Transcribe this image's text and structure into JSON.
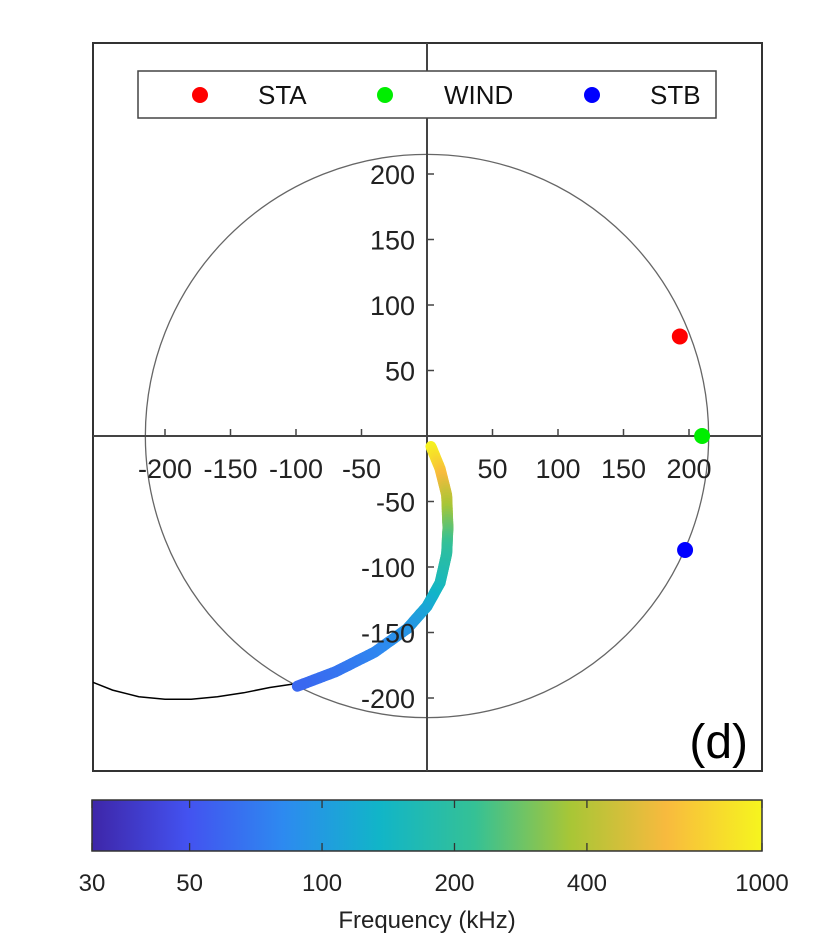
{
  "chart_data": {
    "type": "scatter",
    "panel_label": "(d)",
    "xlim": [
      -255,
      255
    ],
    "ylim": [
      -255,
      300
    ],
    "x_ticks": [
      -200,
      -150,
      -100,
      -50,
      50,
      100,
      150,
      200
    ],
    "y_ticks": [
      200,
      150,
      100,
      50,
      -50,
      -100,
      -150,
      -200
    ],
    "reference_circle_radius": 215,
    "legend": {
      "placement": "top",
      "entries": [
        {
          "name": "STA",
          "color": "#ff0000"
        },
        {
          "name": "WIND",
          "color": "#00ee00"
        },
        {
          "name": "STB",
          "color": "#0000ff"
        }
      ]
    },
    "spacecraft": [
      {
        "name": "STA",
        "x": 193,
        "y": 76,
        "color": "#ff0000"
      },
      {
        "name": "WIND",
        "x": 210,
        "y": 0,
        "color": "#00ee00"
      },
      {
        "name": "STB",
        "x": 197,
        "y": -87,
        "color": "#0000ff"
      }
    ],
    "spiral_line": {
      "x": [
        -255,
        -240,
        -220,
        -200,
        -180,
        -160,
        -140,
        -120,
        -100
      ],
      "y": [
        -188,
        -194,
        -199,
        -201,
        -201,
        -199,
        -196,
        -192,
        -189
      ]
    },
    "source_track": {
      "x": [
        3,
        10,
        15,
        16,
        15,
        10,
        0,
        -15,
        -40,
        -70,
        -99
      ],
      "y": [
        -8,
        -25,
        -45,
        -70,
        -90,
        -112,
        -130,
        -147,
        -165,
        -180,
        -191
      ],
      "frequency_khz": [
        1000,
        700,
        450,
        280,
        200,
        160,
        120,
        95,
        80,
        68,
        60
      ]
    },
    "colorbar": {
      "label": "Frequency (kHz)",
      "scale": "log",
      "range": [
        30,
        1000
      ],
      "ticks": [
        30,
        50,
        100,
        200,
        400,
        1000
      ],
      "tick_labels": [
        "30",
        "50",
        "100",
        "200",
        "400",
        "1000"
      ],
      "stops": [
        "#3e26a8",
        "#4352f0",
        "#2d8af0",
        "#11b5c8",
        "#35c195",
        "#a8c636",
        "#f8ba3e",
        "#f6f51e"
      ]
    }
  }
}
